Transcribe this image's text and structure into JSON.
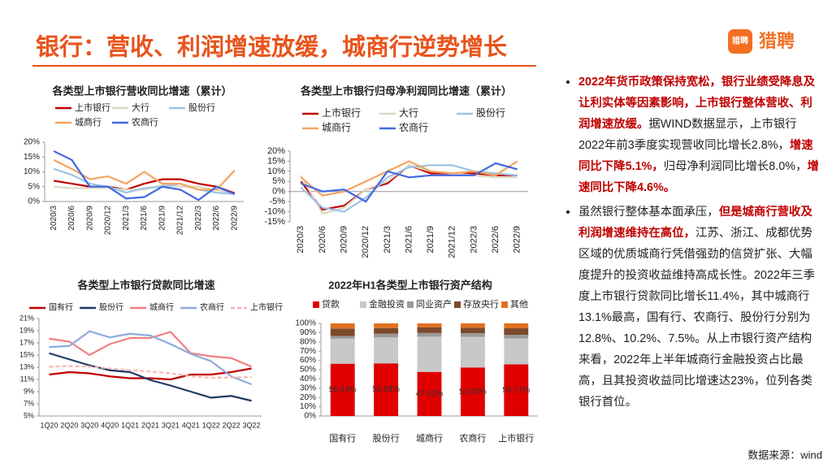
{
  "title": "银行：营收、利润增速放缓，城商行逆势增长",
  "logo": {
    "icon_text": "猎聘",
    "brand": "猎聘"
  },
  "source": "数据来源：wind",
  "bullets": [
    [
      {
        "text": "2022年货币政策保持宽松，银行业绩受降息及让利实体等因素影响，上市银行整体营收、利润增速放缓。",
        "emph": true
      },
      {
        "text": "据WIND数据显示，上市银行2022年前3季度实现营收同比增长2.8%，",
        "emph": false
      },
      {
        "text": "增速同比下降5.1%，",
        "emph": true
      },
      {
        "text": "归母净利润同比增长8.0%，",
        "emph": false
      },
      {
        "text": "增速同比下降4.6%。",
        "emph": true
      }
    ],
    [
      {
        "text": "虽然银行整体基本面承压，",
        "emph": false
      },
      {
        "text": "但是城商行营收及利润增速维持在高位，",
        "emph": true
      },
      {
        "text": "江苏、浙江、成都优势区域的优质城商行凭借强劲的信贷扩张、大幅度提升的投资收益维持高成长性。2022年三季度上市银行贷款同比增长11.4%，其中城商行13.1%最高，国有行、农商行、股份行分别为12.8%、10.2%、7.5%。从上市银行资产结构来看，2022年上半年城商行金融投资占比最高，且其投资收益同比增速达23%，位列各类银行首位。",
        "emph": false
      }
    ]
  ],
  "chart_data": [
    {
      "type": "line",
      "title": "各类型上市银行营收同比增速（累计）",
      "categories": [
        "2020/3",
        "2020/6",
        "2020/9",
        "2020/12",
        "2021/3",
        "2021/6",
        "2021/9",
        "2021/12",
        "2022/3",
        "2022/6",
        "2022/9"
      ],
      "ylim": [
        0,
        20
      ],
      "yticks": [
        {
          "value": 0,
          "label": "0%"
        },
        {
          "value": 5,
          "label": "5%"
        },
        {
          "value": 10,
          "label": "10%"
        },
        {
          "value": 15,
          "label": "15%"
        },
        {
          "value": 20,
          "label": "20%"
        }
      ],
      "series": [
        {
          "name": "上市银行",
          "color": "#c00000",
          "values": [
            7,
            6,
            5,
            5,
            4,
            6,
            7.5,
            7.5,
            6,
            5,
            2.8
          ]
        },
        {
          "name": "大行",
          "color": "#ddd9c3",
          "values": [
            5,
            4.5,
            4.5,
            4.5,
            4,
            4,
            5.5,
            5,
            5,
            4,
            2.5
          ]
        },
        {
          "name": "股份行",
          "color": "#9dc3e6",
          "values": [
            11,
            9,
            6,
            5,
            3,
            4.5,
            5,
            6,
            4,
            3,
            2.5
          ]
        },
        {
          "name": "城商行",
          "color": "#f4a460",
          "values": [
            14,
            11,
            7.5,
            8.5,
            6,
            10,
            6,
            6,
            4,
            4,
            10.5
          ]
        },
        {
          "name": "农商行",
          "color": "#4169e1",
          "values": [
            17,
            14,
            5,
            5,
            1,
            1.5,
            5,
            4,
            0.5,
            5,
            2.5
          ]
        }
      ]
    },
    {
      "type": "line",
      "title": "各类型上市银行归母净利润同比增速（累计）",
      "categories": [
        "2020/3",
        "2020/6",
        "2020/9",
        "2020/12",
        "2021/3",
        "2021/6",
        "2021/9",
        "2021/12",
        "2022/3",
        "2022/6",
        "2022/9"
      ],
      "ylim": [
        -15,
        20
      ],
      "yticks": [
        {
          "value": -15,
          "label": "-15%"
        },
        {
          "value": -10,
          "label": "-10%"
        },
        {
          "value": -5,
          "label": "-5%"
        },
        {
          "value": 0,
          "label": "0%"
        },
        {
          "value": 5,
          "label": "5%"
        },
        {
          "value": 10,
          "label": "10%"
        },
        {
          "value": 15,
          "label": "15%"
        },
        {
          "value": 20,
          "label": "20%"
        }
      ],
      "series": [
        {
          "name": "上市银行",
          "color": "#c00000",
          "values": [
            5,
            -9,
            -7,
            1,
            4,
            13,
            9,
            9,
            9,
            8,
            8
          ]
        },
        {
          "name": "大行",
          "color": "#ddd9c3",
          "values": [
            8,
            -11,
            -8,
            1,
            5,
            13,
            10,
            9,
            8,
            7,
            7
          ]
        },
        {
          "name": "股份行",
          "color": "#9dc3e6",
          "values": [
            2,
            -8,
            -10,
            -3,
            7,
            12,
            13,
            13,
            10,
            9,
            8
          ]
        },
        {
          "name": "城商行",
          "color": "#f4a460",
          "values": [
            7,
            -2,
            0,
            5,
            10,
            15,
            10,
            9,
            10,
            8,
            15
          ]
        },
        {
          "name": "农商行",
          "color": "#4169e1",
          "values": [
            4,
            0,
            1,
            -5,
            10,
            7,
            8,
            8,
            8,
            14,
            11
          ]
        }
      ]
    },
    {
      "type": "line",
      "title": "各类型上市银行贷款同比增速",
      "categories": [
        "1Q20",
        "2Q20",
        "3Q20",
        "4Q20",
        "1Q21",
        "2Q21",
        "3Q21",
        "4Q21",
        "1Q22",
        "2Q22",
        "3Q22"
      ],
      "ylim": [
        5,
        21
      ],
      "yticks": [
        {
          "value": 5,
          "label": "5%"
        },
        {
          "value": 7,
          "label": "7%"
        },
        {
          "value": 9,
          "label": "9%"
        },
        {
          "value": 11,
          "label": "11%"
        },
        {
          "value": 13,
          "label": "13%"
        },
        {
          "value": 15,
          "label": "15%"
        },
        {
          "value": 17,
          "label": "17%"
        },
        {
          "value": 19,
          "label": "19%"
        },
        {
          "value": 21,
          "label": "21%"
        }
      ],
      "series": [
        {
          "name": "国有行",
          "color": "#c00000",
          "values": [
            11.8,
            12.2,
            12,
            11.5,
            11.2,
            11.2,
            11,
            11.8,
            11.8,
            12.2,
            12.8
          ]
        },
        {
          "name": "股份行",
          "color": "#1f3864",
          "values": [
            15.3,
            14.3,
            13.3,
            12.5,
            12.2,
            10.9,
            10,
            9,
            8,
            8.3,
            7.5
          ]
        },
        {
          "name": "城商行",
          "color": "#f08080",
          "values": [
            17.7,
            17.2,
            15,
            16.8,
            17.8,
            17.8,
            18.8,
            15.3,
            14.8,
            14.5,
            13.1
          ]
        },
        {
          "name": "农商行",
          "color": "#8faadc",
          "values": [
            16.3,
            16.5,
            18.9,
            17.9,
            18.5,
            18.2,
            16.8,
            15.2,
            14,
            11.5,
            10.2
          ]
        },
        {
          "name": "上市银行",
          "color": "#f4b6b6",
          "dash": true,
          "values": [
            13.1,
            13.2,
            13.1,
            12.8,
            12.5,
            12.3,
            12,
            11.5,
            11.3,
            11.3,
            11.4
          ]
        }
      ]
    },
    {
      "type": "stacked_bar",
      "title": "2022年H1各类型上市银行资产结构",
      "categories": [
        "国有行",
        "股份行",
        "城商行",
        "农商行",
        "上市银行"
      ],
      "ylim": [
        0,
        100
      ],
      "yticks": [
        {
          "value": 0,
          "label": "0%"
        },
        {
          "value": 10,
          "label": "10%"
        },
        {
          "value": 20,
          "label": "20%"
        },
        {
          "value": 30,
          "label": "30%"
        },
        {
          "value": 40,
          "label": "40%"
        },
        {
          "value": 50,
          "label": "50%"
        },
        {
          "value": 60,
          "label": "60%"
        },
        {
          "value": 70,
          "label": "70%"
        },
        {
          "value": 80,
          "label": "80%"
        },
        {
          "value": 90,
          "label": "90%"
        },
        {
          "value": 100,
          "label": "100%"
        }
      ],
      "series": [
        {
          "name": "贷款",
          "color": "#e00000",
          "values": [
            56.43,
            56.83,
            47.62,
            52.4,
            55.71
          ],
          "value_labels": [
            "56.43%",
            "56.83%",
            "47.62%",
            "52.40%",
            "55.71%"
          ]
        },
        {
          "name": "金融投资",
          "color": "#c8c8c8",
          "values": [
            27,
            28,
            38,
            33,
            28
          ]
        },
        {
          "name": "同业资产",
          "color": "#9a9a9a",
          "values": [
            3,
            4,
            4,
            4,
            4
          ]
        },
        {
          "name": "存放央行",
          "color": "#7b4a2a",
          "values": [
            8,
            6,
            6,
            6,
            7
          ]
        },
        {
          "name": "其他",
          "color": "#e07020",
          "values": [
            5.57,
            5.17,
            4.38,
            4.6,
            5.29
          ]
        }
      ]
    }
  ]
}
